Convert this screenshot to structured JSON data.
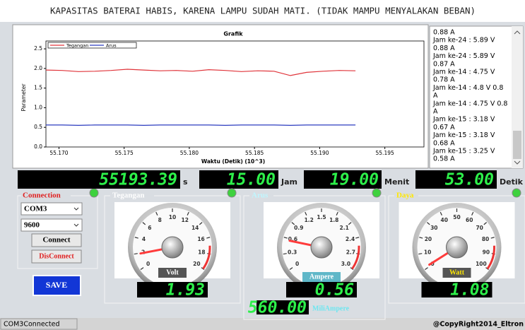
{
  "header": {
    "title": "KAPASITAS BATERAI HABIS, KARENA LAMPU SUDAH MATI. (TIDAK MAMPU MENYALAKAN BEBAN)"
  },
  "chart": {
    "type": "line",
    "title": "Grafik",
    "x_label": "Waktu (Detik) (10^3)",
    "y_label": "Parameter",
    "xlim": [
      55.169,
      55.198
    ],
    "ylim": [
      0,
      2.7
    ],
    "xticks": [
      {
        "value": 55.17,
        "label": "55.170"
      },
      55.175,
      {
        "value": 55.18,
        "label": "55.180"
      },
      55.185,
      {
        "value": 55.19,
        "label": "55.190"
      },
      55.195
    ],
    "yticks": [
      {
        "value": 0,
        "label": "0.0"
      },
      0.5,
      {
        "value": 1,
        "label": "1.0"
      },
      1.5,
      {
        "value": 2,
        "label": "2.0"
      },
      2.5
    ],
    "x": [
      55.169,
      55.17025,
      55.1715,
      55.17275,
      55.174,
      55.17525,
      55.1765,
      55.17775,
      55.179,
      55.18025,
      55.1815,
      55.18275,
      55.184,
      55.18525,
      55.1865,
      55.18775,
      55.189,
      55.19025,
      55.1915,
      55.19275
    ],
    "series": [
      {
        "name": "Tegangan",
        "color": "#e0343a",
        "values": [
          1.96,
          1.95,
          1.92,
          1.93,
          1.95,
          1.98,
          1.96,
          1.94,
          1.95,
          1.93,
          1.97,
          1.95,
          1.92,
          1.94,
          1.93,
          1.82,
          1.9,
          1.93,
          1.95,
          1.94
        ]
      },
      {
        "name": "Arus",
        "color": "#2b3bbf",
        "values": [
          0.56,
          0.56,
          0.55,
          0.56,
          0.56,
          0.56,
          0.55,
          0.56,
          0.56,
          0.56,
          0.56,
          0.55,
          0.56,
          0.56,
          0.56,
          0.55,
          0.56,
          0.56,
          0.56,
          0.56
        ]
      }
    ],
    "legend": "top-left"
  },
  "log": [
    "0.88 A",
    "Jam ke-24 : 5.89 V",
    "0.88 A",
    "Jam ke-24 : 5.89 V",
    "0.87 A",
    "Jam ke-14 : 4.75 V",
    "0.78 A",
    "Jam ke-14 : 4.8 V 0.8",
    "A",
    "Jam ke-14 : 4.75 V 0.8",
    "A",
    "Jam ke-15 : 3.18 V",
    "0.67 A",
    "Jam ke-15 : 3.18 V",
    "0.68 A",
    "Jam ke-15 : 3.25 V",
    "0.58 A"
  ],
  "clock": [
    {
      "reading": "55193.39",
      "unit": "s"
    },
    {
      "reading": "15.00",
      "unit": "Jam"
    },
    {
      "reading": "19.00",
      "unit": "Menit"
    },
    {
      "reading": "53.00",
      "unit": "Detik"
    }
  ],
  "connection": {
    "title": "Connection",
    "port": "COM3",
    "baud": "9600",
    "connect": "Connect",
    "disconnect": "DisConnect",
    "save": "SAVE"
  },
  "gauges": [
    {
      "title": "Tegangan",
      "unit": "Volt",
      "reading": "1.93",
      "ticks": [
        "0",
        "2",
        "4",
        "6",
        "8",
        "10",
        "12",
        "14",
        "16",
        "18",
        "20"
      ]
    },
    {
      "title": "Arus",
      "unit": "Ampere",
      "reading": "0.56",
      "ticks": [
        "0",
        "0.3",
        "0.6",
        "0.9",
        "1.2",
        "1.5",
        "1.8",
        "2.1",
        "2.4",
        "2.7",
        "3.0"
      ]
    },
    {
      "title": "Daya",
      "unit": "Watt",
      "reading": "1.08",
      "ticks": [
        "0",
        "10",
        "20",
        "30",
        "40",
        "50",
        "60",
        "70",
        "80",
        "90",
        "100"
      ]
    }
  ],
  "milli": {
    "reading": "560.00",
    "unit": "MiliAmpere"
  },
  "status": {
    "left": "COM3Connected",
    "right": "@CopyRight2014_Eltron"
  }
}
